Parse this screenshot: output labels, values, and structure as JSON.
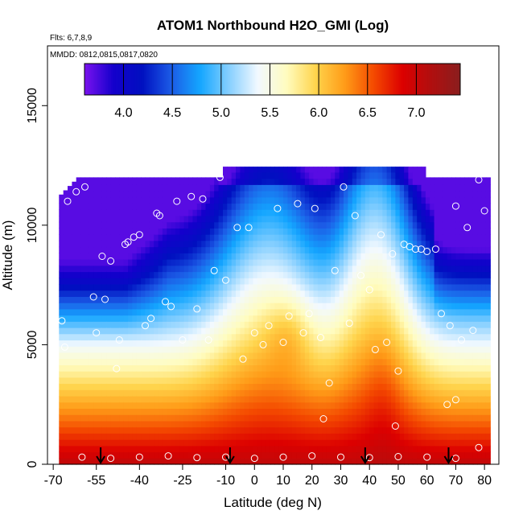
{
  "chart_data": {
    "type": "heatmap",
    "title": "ATOM1 Northbound H2O_GMI (Log)",
    "subtitle_flights": "Flts: 6,7,8,9",
    "subtitle_dates": "MMDD: 0812,0815,0817,0820",
    "xlabel": "Latitude (deg N)",
    "ylabel": "Altitude (m)",
    "xlim": [
      -72,
      85
    ],
    "ylim": [
      0,
      17500
    ],
    "x_ticks": [
      -70,
      -55,
      -40,
      -25,
      -10,
      0,
      10,
      20,
      30,
      40,
      50,
      60,
      70,
      80
    ],
    "x_tick_labels": [
      "-70",
      "-55",
      "-40",
      "-25",
      "-10",
      "0",
      "10",
      "20",
      "30",
      "40",
      "50",
      "60",
      "70",
      "80"
    ],
    "y_ticks": [
      0,
      5000,
      10000,
      15000
    ],
    "y_tick_labels": [
      "0",
      "5000",
      "10000",
      "15000"
    ],
    "colorbar": {
      "range": [
        3.6,
        7.45
      ],
      "ticks": [
        4.0,
        4.5,
        5.0,
        5.5,
        6.0,
        6.5,
        7.0
      ],
      "tick_labels": [
        "4.0",
        "4.5",
        "5.0",
        "5.5",
        "6.0",
        "6.5",
        "7.0"
      ],
      "colors": [
        "#7a12ee",
        "#1400cc",
        "#0010c0",
        "#1c5ce6",
        "#14a6ff",
        "#86cfff",
        "#f2f9ff",
        "#fffcbe",
        "#ffd44c",
        "#ff9c18",
        "#f44a00",
        "#dc0000",
        "#b00f0f",
        "#8a1e1e"
      ]
    },
    "field_extent": {
      "lat_range": [
        -68,
        82
      ],
      "alt_range": [
        0,
        12500
      ]
    },
    "flight_arrows_lat": [
      -53.5,
      -8.5,
      38.5,
      67.5
    ],
    "sample_points": [
      [
        -67,
        6000
      ],
      [
        -66,
        4900
      ],
      [
        -65,
        11000
      ],
      [
        -62,
        11400
      ],
      [
        -59,
        11600
      ],
      [
        -56,
        7000
      ],
      [
        -55,
        5500
      ],
      [
        -53,
        8700
      ],
      [
        -52,
        6900
      ],
      [
        -50,
        8500
      ],
      [
        -48,
        4000
      ],
      [
        -47,
        5200
      ],
      [
        -45,
        9200
      ],
      [
        -44,
        9300
      ],
      [
        -42,
        9500
      ],
      [
        -40,
        9600
      ],
      [
        -38,
        5800
      ],
      [
        -36,
        6100
      ],
      [
        -34,
        10500
      ],
      [
        -33,
        10400
      ],
      [
        -31,
        6800
      ],
      [
        -29,
        6600
      ],
      [
        -27,
        11000
      ],
      [
        -25,
        5200
      ],
      [
        -22,
        11200
      ],
      [
        -20,
        6500
      ],
      [
        -18,
        11100
      ],
      [
        -16,
        5200
      ],
      [
        -14,
        8100
      ],
      [
        -12,
        12000
      ],
      [
        -10,
        7700
      ],
      [
        -6,
        9900
      ],
      [
        -4,
        4400
      ],
      [
        -2,
        9900
      ],
      [
        0,
        5500
      ],
      [
        3,
        5000
      ],
      [
        5,
        5800
      ],
      [
        8,
        10700
      ],
      [
        10,
        5100
      ],
      [
        12,
        6200
      ],
      [
        15,
        10900
      ],
      [
        17,
        5500
      ],
      [
        19,
        6300
      ],
      [
        21,
        10700
      ],
      [
        23,
        5300
      ],
      [
        26,
        3400
      ],
      [
        28,
        8100
      ],
      [
        31,
        11600
      ],
      [
        33,
        5900
      ],
      [
        35,
        10400
      ],
      [
        37,
        7900
      ],
      [
        40,
        7300
      ],
      [
        42,
        4800
      ],
      [
        44,
        9600
      ],
      [
        46,
        5100
      ],
      [
        48,
        8800
      ],
      [
        50,
        3900
      ],
      [
        52,
        9200
      ],
      [
        54,
        9100
      ],
      [
        56,
        9000
      ],
      [
        58,
        9000
      ],
      [
        60,
        8900
      ],
      [
        63,
        9000
      ],
      [
        65,
        6300
      ],
      [
        67,
        2500
      ],
      [
        68,
        5800
      ],
      [
        70,
        10800
      ],
      [
        72,
        5200
      ],
      [
        74,
        9900
      ],
      [
        76,
        5600
      ],
      [
        78,
        11900
      ],
      [
        80,
        10600
      ],
      [
        -60,
        300
      ],
      [
        -50,
        250
      ],
      [
        -40,
        300
      ],
      [
        -30,
        350
      ],
      [
        -20,
        280
      ],
      [
        -10,
        300
      ],
      [
        0,
        250
      ],
      [
        10,
        300
      ],
      [
        20,
        350
      ],
      [
        30,
        300
      ],
      [
        40,
        280
      ],
      [
        50,
        320
      ],
      [
        60,
        300
      ],
      [
        70,
        250
      ],
      [
        78,
        700
      ],
      [
        24,
        1900
      ],
      [
        49,
        1600
      ],
      [
        70,
        2700
      ]
    ]
  }
}
